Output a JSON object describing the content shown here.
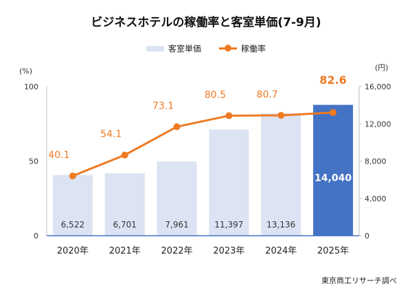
{
  "chart_data": {
    "type": "bar+line",
    "title": "ビジネスホテルの稼働率と客室単価(7-9月)",
    "categories": [
      "2020年",
      "2021年",
      "2022年",
      "2023年",
      "2024年",
      "2025年"
    ],
    "series": [
      {
        "name": "客室単価",
        "type": "bar",
        "axis": "right",
        "values": [
          6522,
          6701,
          7961,
          11397,
          13136,
          14040
        ],
        "labels": [
          "6,522",
          "6,701",
          "7,961",
          "11,397",
          "13,136",
          "14,040"
        ],
        "colors": [
          "#dce3f2",
          "#dce3f2",
          "#dce3f2",
          "#dce3f2",
          "#dce3f2",
          "#4472c4"
        ]
      },
      {
        "name": "稼働率",
        "type": "line",
        "axis": "left",
        "values": [
          40.1,
          54.1,
          73.1,
          80.5,
          80.7,
          82.6
        ],
        "labels": [
          "40.1",
          "54.1",
          "73.1",
          "80.5",
          "80.7",
          "82.6"
        ],
        "color": "#ee7a22"
      }
    ],
    "left_axis": {
      "unit": "(%)",
      "ylim": [
        0,
        100
      ],
      "ticks": [
        "0",
        "50",
        "100"
      ]
    },
    "right_axis": {
      "unit": "(円)",
      "ylim": [
        0,
        16000
      ],
      "ticks": [
        "0",
        "4,000",
        "8,000",
        "12,000",
        "16,000"
      ]
    },
    "legend": "top",
    "grid": false
  },
  "source": "東京商工リサーチ調べ"
}
